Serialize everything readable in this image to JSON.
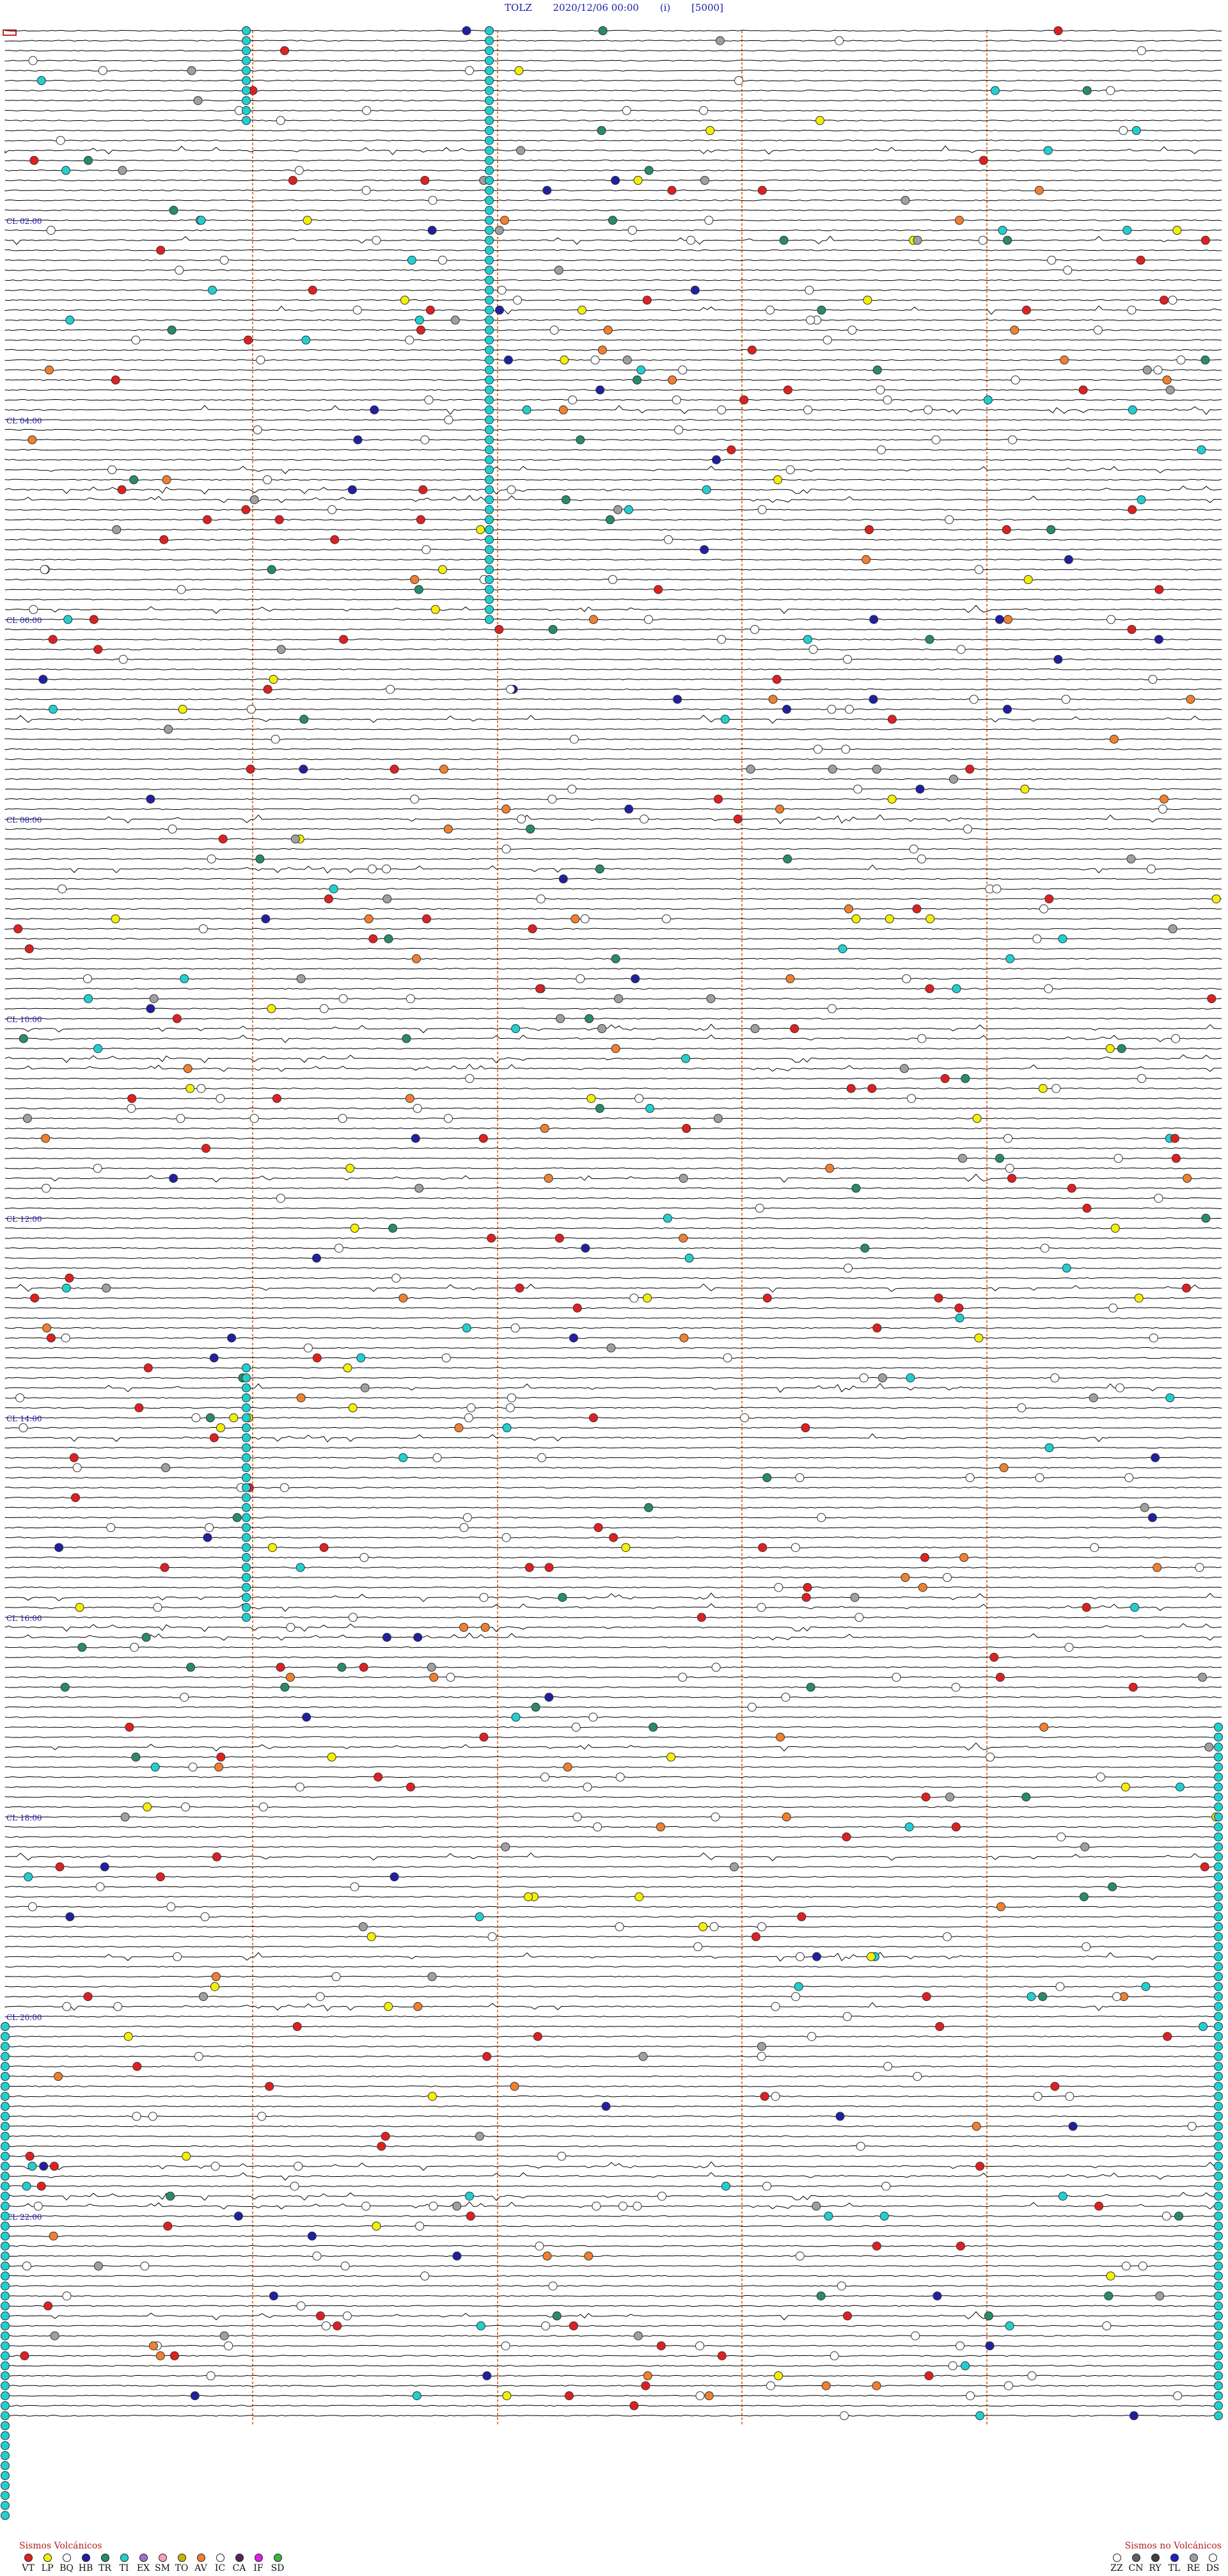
{
  "header": {
    "station": "TOLZ",
    "datetime": "2020/12/06 00:00",
    "component": "(i)",
    "scale": "[5000]"
  },
  "hour_labels": [
    "CL 02:00",
    "CL 04:00",
    "CL 06:00",
    "CL 08:00",
    "CL 10:00",
    "CL 12:00",
    "CL 14:00",
    "CL 16:00",
    "CL 18:00",
    "CL 20:00",
    "CL 22:00"
  ],
  "legend_left": {
    "title": "Sismos Volcánicos",
    "items": [
      {
        "code": "VT",
        "color": "#e02020"
      },
      {
        "code": "LP",
        "color": "#f5f000"
      },
      {
        "code": "BQ",
        "color": "#ffffff"
      },
      {
        "code": "HB",
        "color": "#2020a0"
      },
      {
        "code": "TR",
        "color": "#2a8a6a"
      },
      {
        "code": "TI",
        "color": "#20d0d0"
      },
      {
        "code": "EX",
        "color": "#a070d0"
      },
      {
        "code": "SM",
        "color": "#f0a0c0"
      },
      {
        "code": "TO",
        "color": "#c8b400"
      },
      {
        "code": "AV",
        "color": "#f08030"
      },
      {
        "code": "IC",
        "color": "#ffffff"
      },
      {
        "code": "CA",
        "color": "#602060"
      },
      {
        "code": "IF",
        "color": "#e020e0"
      },
      {
        "code": "SD",
        "color": "#40b040"
      }
    ]
  },
  "legend_right": {
    "title": "Sismos no Volcánicos",
    "items": [
      {
        "code": "ZZ",
        "color": "#ffffff"
      },
      {
        "code": "CN",
        "color": "#606060"
      },
      {
        "code": "RY",
        "color": "#404040"
      },
      {
        "code": "TL",
        "color": "#2020c0"
      },
      {
        "code": "RE",
        "color": "#a0a0a0"
      },
      {
        "code": "DS",
        "color": "#ffffff"
      }
    ]
  },
  "colors": {
    "trace": "#000000",
    "hour_label": "#1a1aa8",
    "minute_guides": "#e08040"
  }
}
